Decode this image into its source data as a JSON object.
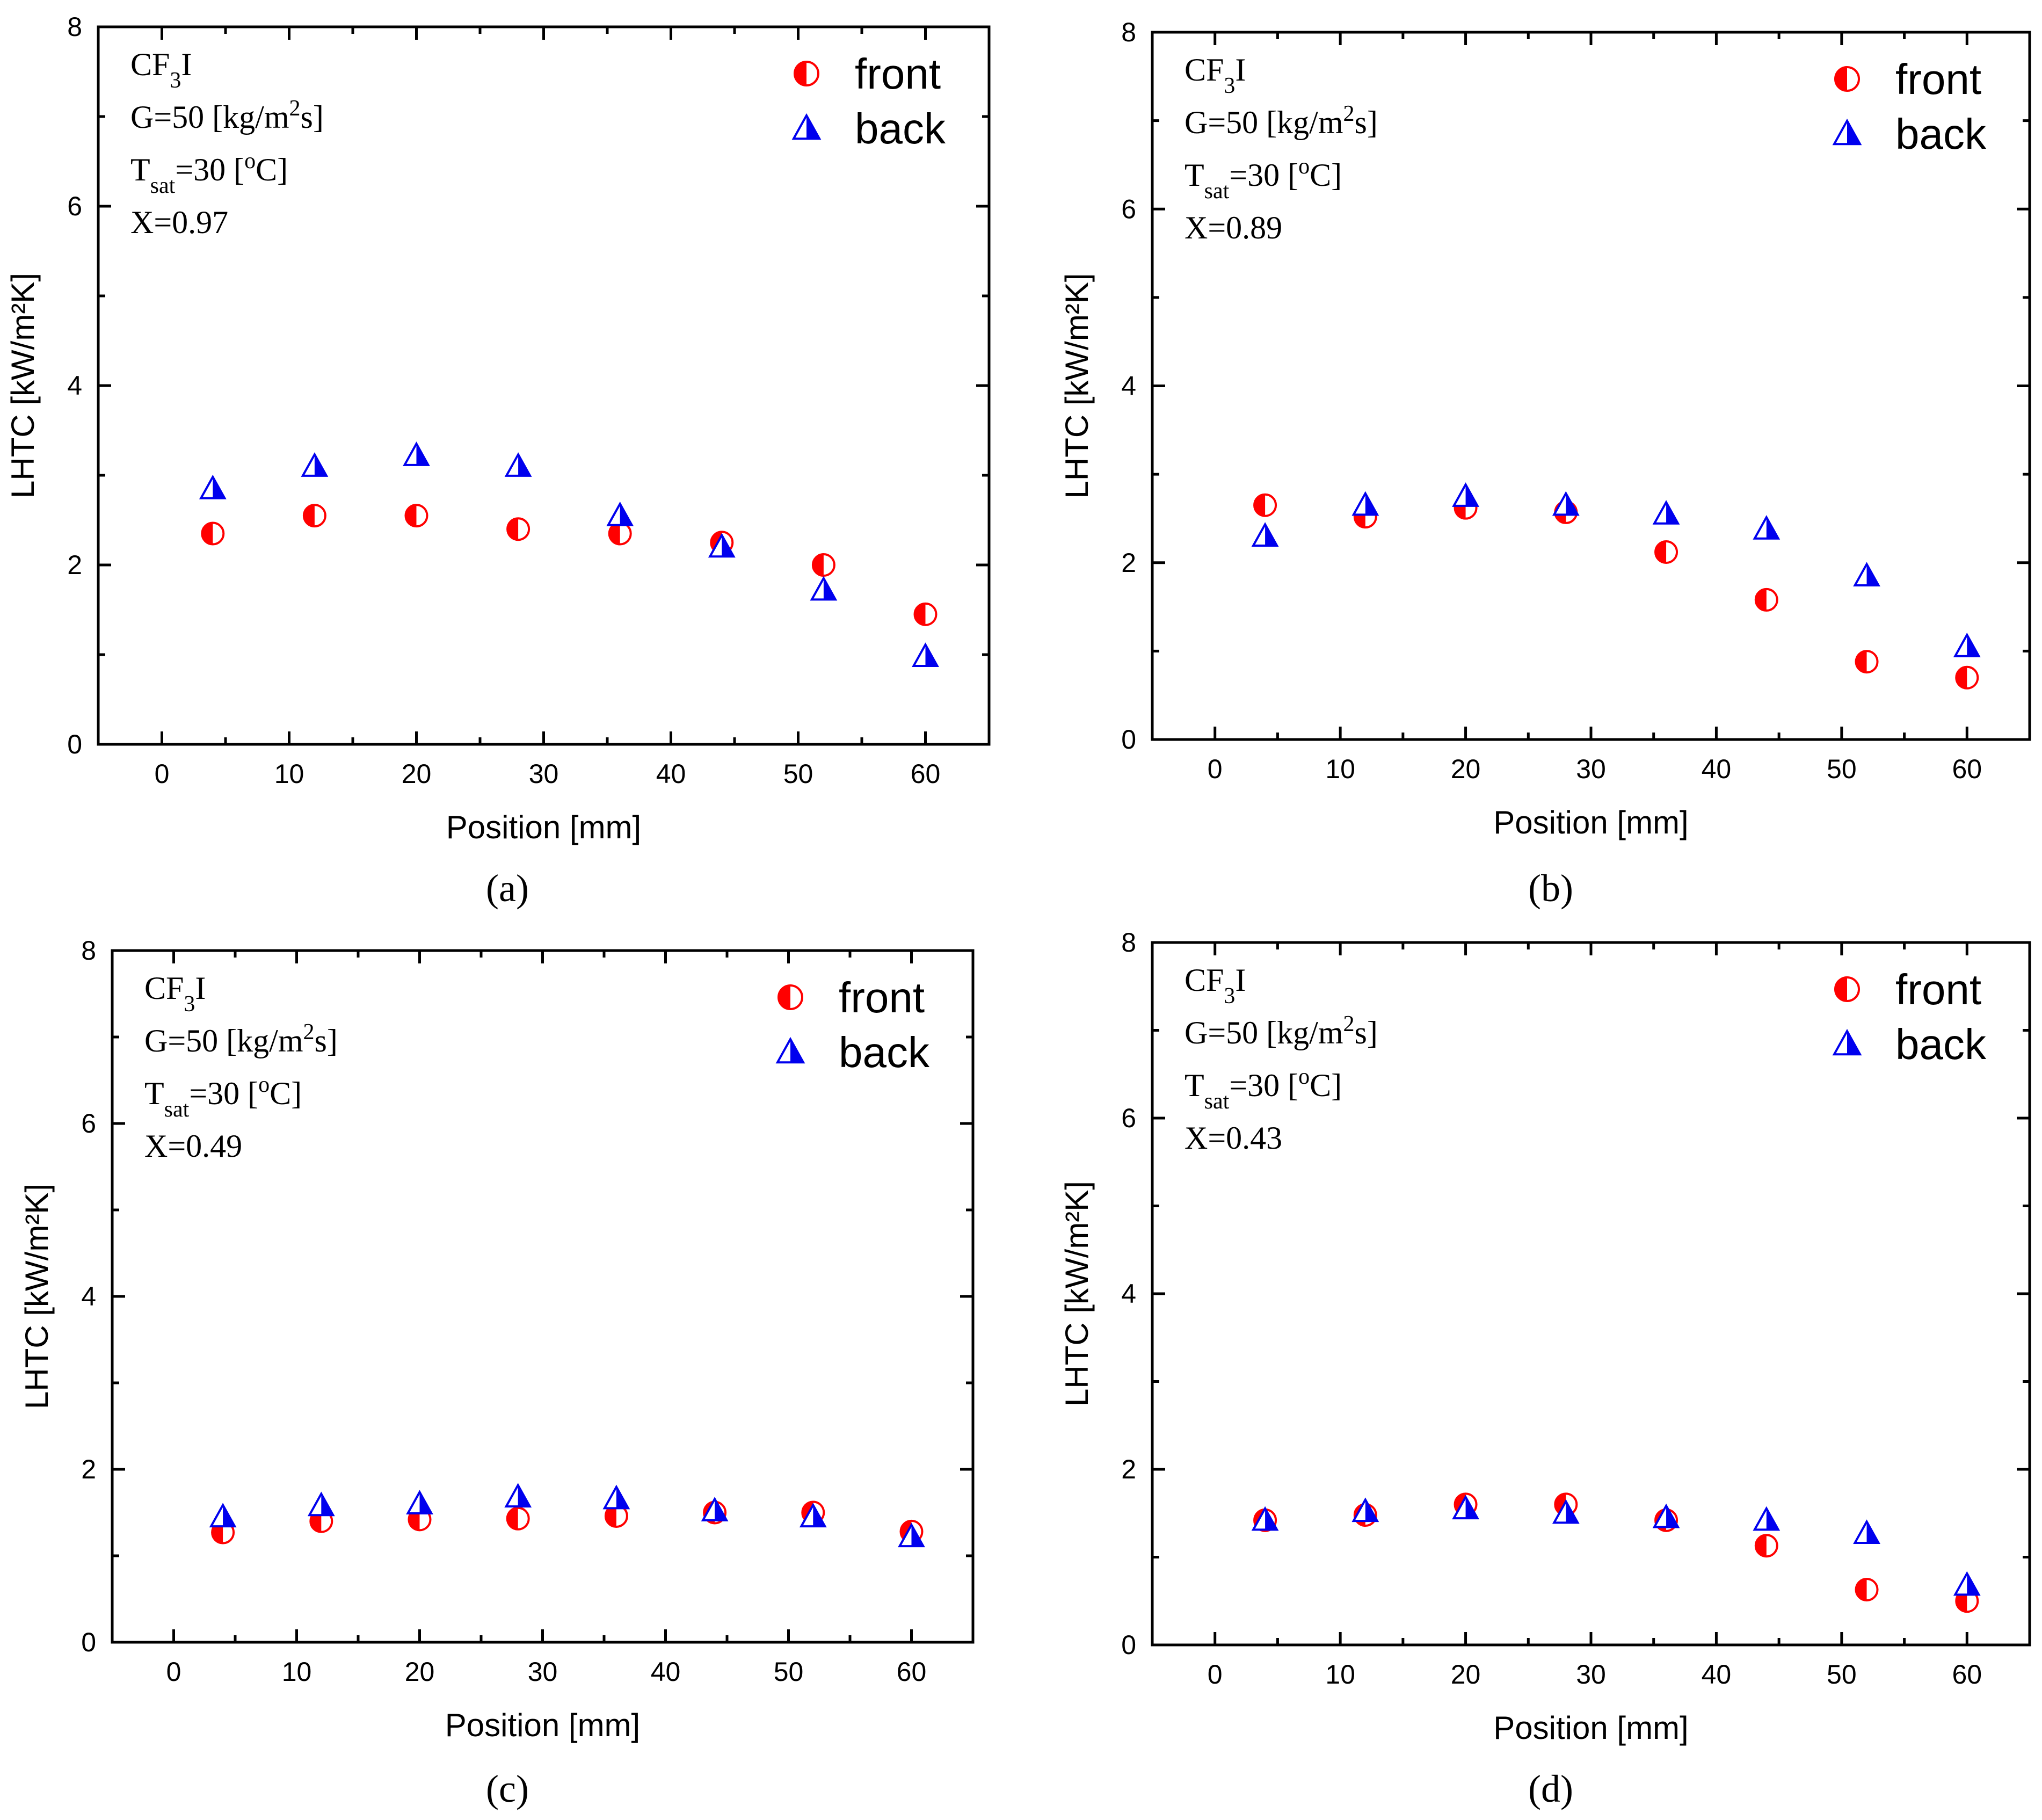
{
  "figure": {
    "colors": {
      "front": "#ff0000",
      "back": "#0000ee",
      "axes": "#000000"
    }
  },
  "chart_data": [
    {
      "type": "scatter",
      "panel_label": "(a)",
      "xlabel": "Position [mm]",
      "ylabel": "LHTC [kW/m²K]",
      "xlim": [
        -5,
        65
      ],
      "ylim": [
        0,
        8
      ],
      "x_ticks": [
        0,
        10,
        20,
        30,
        40,
        50,
        60
      ],
      "y_ticks": [
        0,
        2,
        4,
        6,
        8
      ],
      "annotations": {
        "fluid": "CF3I",
        "mass_flux": "G=50 [kg/m2s]",
        "tsat": "Tsat=30 [oC]",
        "quality": "X=0.97"
      },
      "series": [
        {
          "name": "front",
          "marker": "half-circle",
          "x": [
            4,
            12,
            20,
            28,
            36,
            44,
            52,
            60
          ],
          "values": [
            2.35,
            2.55,
            2.55,
            2.4,
            2.35,
            2.25,
            2.0,
            1.45
          ]
        },
        {
          "name": "back",
          "marker": "half-triangle",
          "x": [
            4,
            12,
            20,
            28,
            36,
            44,
            52,
            60
          ],
          "values": [
            2.85,
            3.1,
            3.22,
            3.1,
            2.55,
            2.2,
            1.72,
            0.98
          ]
        }
      ]
    },
    {
      "type": "scatter",
      "panel_label": "(b)",
      "xlabel": "Position [mm]",
      "ylabel": "LHTC [kW/m²K]",
      "xlim": [
        -5,
        65
      ],
      "ylim": [
        0,
        8
      ],
      "x_ticks": [
        0,
        10,
        20,
        30,
        40,
        50,
        60
      ],
      "y_ticks": [
        0,
        2,
        4,
        6,
        8
      ],
      "annotations": {
        "fluid": "CF3I",
        "mass_flux": "G=50 [kg/m2s]",
        "tsat": "Tsat=30 [oC]",
        "quality": "X=0.89"
      },
      "series": [
        {
          "name": "front",
          "marker": "half-circle",
          "x": [
            4,
            12,
            20,
            28,
            36,
            44,
            52,
            60
          ],
          "values": [
            2.65,
            2.52,
            2.62,
            2.57,
            2.12,
            1.58,
            0.88,
            0.7
          ]
        },
        {
          "name": "back",
          "marker": "half-triangle",
          "x": [
            4,
            12,
            20,
            28,
            36,
            44,
            52,
            60
          ],
          "values": [
            2.3,
            2.65,
            2.75,
            2.65,
            2.55,
            2.38,
            1.85,
            1.05
          ]
        }
      ]
    },
    {
      "type": "scatter",
      "panel_label": "(c)",
      "xlabel": "Position [mm]",
      "ylabel": "LHTC [kW/m²K]",
      "xlim": [
        -5,
        65
      ],
      "ylim": [
        0,
        8
      ],
      "x_ticks": [
        0,
        10,
        20,
        30,
        40,
        50,
        60
      ],
      "y_ticks": [
        0,
        2,
        4,
        6,
        8
      ],
      "annotations": {
        "fluid": "CF3I",
        "mass_flux": "G=50 [kg/m2s]",
        "tsat": "Tsat=30 [oC]",
        "quality": "X=0.49"
      },
      "series": [
        {
          "name": "front",
          "marker": "half-circle",
          "x": [
            4,
            12,
            20,
            28,
            36,
            44,
            52,
            60
          ],
          "values": [
            1.27,
            1.4,
            1.42,
            1.43,
            1.46,
            1.5,
            1.5,
            1.28
          ]
        },
        {
          "name": "back",
          "marker": "half-triangle",
          "x": [
            4,
            12,
            20,
            28,
            36,
            44,
            52,
            60
          ],
          "values": [
            1.45,
            1.58,
            1.6,
            1.68,
            1.66,
            1.52,
            1.45,
            1.22
          ]
        }
      ]
    },
    {
      "type": "scatter",
      "panel_label": "(d)",
      "xlabel": "Position [mm]",
      "ylabel": "LHTC [kW/m²K]",
      "xlim": [
        -5,
        65
      ],
      "ylim": [
        0,
        8
      ],
      "x_ticks": [
        0,
        10,
        20,
        30,
        40,
        50,
        60
      ],
      "y_ticks": [
        0,
        2,
        4,
        6,
        8
      ],
      "annotations": {
        "fluid": "CF3I",
        "mass_flux": "G=50 [kg/m2s]",
        "tsat": "Tsat=30 [oC]",
        "quality": "X=0.43"
      },
      "series": [
        {
          "name": "front",
          "marker": "half-circle",
          "x": [
            4,
            12,
            20,
            28,
            36,
            44,
            52,
            60
          ],
          "values": [
            1.42,
            1.48,
            1.6,
            1.6,
            1.42,
            1.13,
            0.63,
            0.5
          ]
        },
        {
          "name": "back",
          "marker": "half-triangle",
          "x": [
            4,
            12,
            20,
            28,
            36,
            44,
            52,
            60
          ],
          "values": [
            1.42,
            1.52,
            1.55,
            1.5,
            1.45,
            1.42,
            1.27,
            0.68
          ]
        }
      ]
    }
  ]
}
